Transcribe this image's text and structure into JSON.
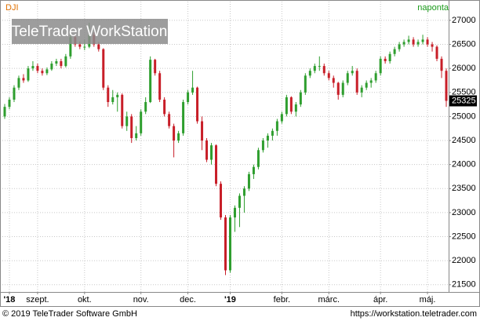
{
  "chart_data": {
    "type": "candlestick",
    "symbol": "DJI",
    "period": "naponta",
    "watermark": "TeleTrader WorkStation",
    "footer_left": "© 2019 TeleTrader Software GmbH",
    "footer_right": "https://workstation.teletrader.com",
    "up_color": "#2e9e2e",
    "down_color": "#c81e28",
    "grid": true,
    "ylim": [
      21350,
      27390
    ],
    "yticks": [
      21500,
      22000,
      22500,
      23000,
      23500,
      24000,
      24500,
      25000,
      25500,
      26000,
      26500,
      27000
    ],
    "xticks": [
      {
        "value": 1,
        "label": "'18"
      },
      {
        "value": 7,
        "label": "szept."
      },
      {
        "value": 17,
        "label": "okt."
      },
      {
        "value": 29,
        "label": "nov."
      },
      {
        "value": 39,
        "label": "dec."
      },
      {
        "value": 48,
        "label": "'19"
      },
      {
        "value": 59,
        "label": "febr."
      },
      {
        "value": 69,
        "label": "márc."
      },
      {
        "value": 80,
        "label": "ápr."
      },
      {
        "value": 90,
        "label": "máj."
      }
    ],
    "candles": [
      [
        25000,
        25260,
        24950,
        25200
      ],
      [
        25200,
        25400,
        25150,
        25350
      ],
      [
        25350,
        25650,
        25300,
        25600
      ],
      [
        25600,
        25850,
        25550,
        25800
      ],
      [
        25800,
        25880,
        25700,
        25750
      ],
      [
        25750,
        26050,
        25720,
        26000
      ],
      [
        26000,
        26150,
        25950,
        26050
      ],
      [
        26050,
        26100,
        25900,
        25950
      ],
      [
        25950,
        26000,
        25850,
        25900
      ],
      [
        25900,
        26020,
        25860,
        25980
      ],
      [
        25980,
        26150,
        25950,
        26100
      ],
      [
        26100,
        26200,
        26050,
        26150
      ],
      [
        26150,
        26200,
        26000,
        26050
      ],
      [
        26050,
        26300,
        26020,
        26250
      ],
      [
        26250,
        26700,
        26200,
        26650
      ],
      [
        26650,
        26700,
        26450,
        26500
      ],
      [
        26500,
        26560,
        26400,
        26450
      ],
      [
        26450,
        26600,
        26380,
        26450
      ],
      [
        26450,
        26950,
        26420,
        26700
      ],
      [
        26700,
        26750,
        26450,
        26500
      ],
      [
        26500,
        26550,
        26350,
        26400
      ],
      [
        26400,
        26420,
        25550,
        25600
      ],
      [
        25600,
        25650,
        25200,
        25300
      ],
      [
        25300,
        25550,
        25250,
        25400
      ],
      [
        25400,
        25500,
        25100,
        25450
      ],
      [
        25450,
        25480,
        24750,
        24800
      ],
      [
        24800,
        25100,
        24700,
        25000
      ],
      [
        25000,
        25050,
        24450,
        24550
      ],
      [
        24550,
        24800,
        24500,
        24650
      ],
      [
        24650,
        25150,
        24600,
        25100
      ],
      [
        25100,
        25400,
        25050,
        25300
      ],
      [
        25300,
        26250,
        25280,
        26180
      ],
      [
        26180,
        26200,
        25850,
        25900
      ],
      [
        25900,
        25950,
        25300,
        25350
      ],
      [
        25350,
        25400,
        25000,
        25050
      ],
      [
        25050,
        25100,
        24750,
        24800
      ],
      [
        24800,
        24850,
        24150,
        24500
      ],
      [
        24500,
        24700,
        24450,
        24650
      ],
      [
        24650,
        25350,
        24600,
        25300
      ],
      [
        25300,
        25550,
        25250,
        25500
      ],
      [
        25500,
        25950,
        25450,
        25600
      ],
      [
        25600,
        25620,
        24850,
        24900
      ],
      [
        24900,
        25000,
        24300,
        24500
      ],
      [
        24500,
        24550,
        24050,
        24100
      ],
      [
        24100,
        24450,
        24000,
        24400
      ],
      [
        24400,
        24420,
        23550,
        23600
      ],
      [
        23600,
        23650,
        22850,
        22900
      ],
      [
        22900,
        22950,
        21700,
        21800
      ],
      [
        21800,
        22950,
        21750,
        22900
      ],
      [
        22900,
        23150,
        22600,
        23100
      ],
      [
        23100,
        23400,
        22700,
        23350
      ],
      [
        23350,
        23550,
        23000,
        23500
      ],
      [
        23500,
        23850,
        23450,
        23800
      ],
      [
        23800,
        24000,
        23700,
        23950
      ],
      [
        23950,
        24350,
        23900,
        24300
      ],
      [
        24300,
        24550,
        24250,
        24500
      ],
      [
        24500,
        24650,
        24350,
        24600
      ],
      [
        24600,
        24750,
        24500,
        24700
      ],
      [
        24700,
        24950,
        24600,
        24900
      ],
      [
        24900,
        25100,
        24850,
        25050
      ],
      [
        25050,
        25450,
        25000,
        25400
      ],
      [
        25400,
        25420,
        25050,
        25100
      ],
      [
        25100,
        25300,
        25000,
        25250
      ],
      [
        25250,
        25550,
        25200,
        25500
      ],
      [
        25500,
        25900,
        25450,
        25850
      ],
      [
        25850,
        26000,
        25800,
        25950
      ],
      [
        25950,
        26100,
        25900,
        26050
      ],
      [
        26050,
        26250,
        25950,
        26050
      ],
      [
        26050,
        26100,
        25850,
        25900
      ],
      [
        25900,
        25950,
        25750,
        25800
      ],
      [
        25800,
        25850,
        25600,
        25700
      ],
      [
        25700,
        25720,
        25350,
        25450
      ],
      [
        25450,
        25750,
        25400,
        25700
      ],
      [
        25700,
        25950,
        25650,
        25900
      ],
      [
        25900,
        26050,
        25850,
        25950
      ],
      [
        25950,
        26000,
        25450,
        25500
      ],
      [
        25500,
        25650,
        25400,
        25600
      ],
      [
        25600,
        25750,
        25550,
        25700
      ],
      [
        25700,
        25800,
        25600,
        25750
      ],
      [
        25750,
        25950,
        25700,
        25900
      ],
      [
        25900,
        26250,
        25850,
        26200
      ],
      [
        26200,
        26250,
        26100,
        26150
      ],
      [
        26150,
        26350,
        26100,
        26300
      ],
      [
        26300,
        26450,
        26250,
        26400
      ],
      [
        26400,
        26550,
        26350,
        26500
      ],
      [
        26500,
        26600,
        26450,
        26550
      ],
      [
        26550,
        26680,
        26500,
        26600
      ],
      [
        26600,
        26650,
        26450,
        26500
      ],
      [
        26500,
        26600,
        26450,
        26550
      ],
      [
        26550,
        26700,
        26500,
        26600
      ],
      [
        26600,
        26650,
        26450,
        26500
      ],
      [
        26500,
        26550,
        26350,
        26450
      ],
      [
        26450,
        26480,
        26150,
        26200
      ],
      [
        26200,
        26250,
        25800,
        25950
      ],
      [
        25950,
        26000,
        25200,
        25325
      ]
    ]
  }
}
